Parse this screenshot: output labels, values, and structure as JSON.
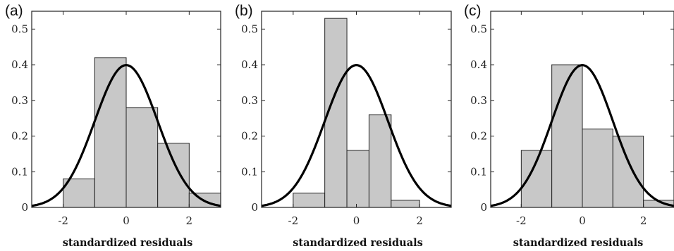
{
  "chart_data": [
    {
      "type": "bar",
      "panel_label": "(a)",
      "xlabel": "standardized residuals",
      "ylabel": "",
      "xlim": [
        -3,
        3
      ],
      "ylim": [
        0,
        0.55
      ],
      "x_ticks": [
        "-2",
        "0",
        "2"
      ],
      "y_ticks": [
        "0",
        "0.1",
        "0.2",
        "0.3",
        "0.4",
        "0.5"
      ],
      "bin_edges": [
        -3,
        -2,
        -1,
        0,
        1,
        2,
        3
      ],
      "values": [
        0.0,
        0.08,
        0.42,
        0.28,
        0.18,
        0.04
      ],
      "overlay": "standard normal pdf",
      "grid": false,
      "bar_color": "#c8c8c8",
      "curve_color": "#000000"
    },
    {
      "type": "bar",
      "panel_label": "(b)",
      "xlabel": "standardized residuals",
      "ylabel": "",
      "xlim": [
        -3,
        3
      ],
      "ylim": [
        0,
        0.55
      ],
      "x_ticks": [
        "-2",
        "0",
        "2"
      ],
      "y_ticks": [
        "0",
        "0.1",
        "0.2",
        "0.3",
        "0.4",
        "0.5"
      ],
      "bin_edges": [
        -2,
        -1,
        -0.3,
        0.4,
        1.1,
        2,
        3
      ],
      "values": [
        0.04,
        0.53,
        0.16,
        0.26,
        0.02,
        0.0
      ],
      "overlay": "standard normal pdf",
      "grid": false,
      "bar_color": "#c8c8c8",
      "curve_color": "#000000"
    },
    {
      "type": "bar",
      "panel_label": "(c)",
      "xlabel": "standardized residuals",
      "ylabel": "",
      "xlim": [
        -3,
        3
      ],
      "ylim": [
        0,
        0.55
      ],
      "x_ticks": [
        "-2",
        "0",
        "2"
      ],
      "y_ticks": [
        "0",
        "0.1",
        "0.2",
        "0.3",
        "0.4",
        "0.5"
      ],
      "bin_edges": [
        -2,
        -1,
        0,
        1,
        2,
        3
      ],
      "values": [
        0.16,
        0.4,
        0.22,
        0.2,
        0.02
      ],
      "overlay": "standard normal pdf",
      "grid": false,
      "bar_color": "#c8c8c8",
      "curve_color": "#000000"
    }
  ]
}
